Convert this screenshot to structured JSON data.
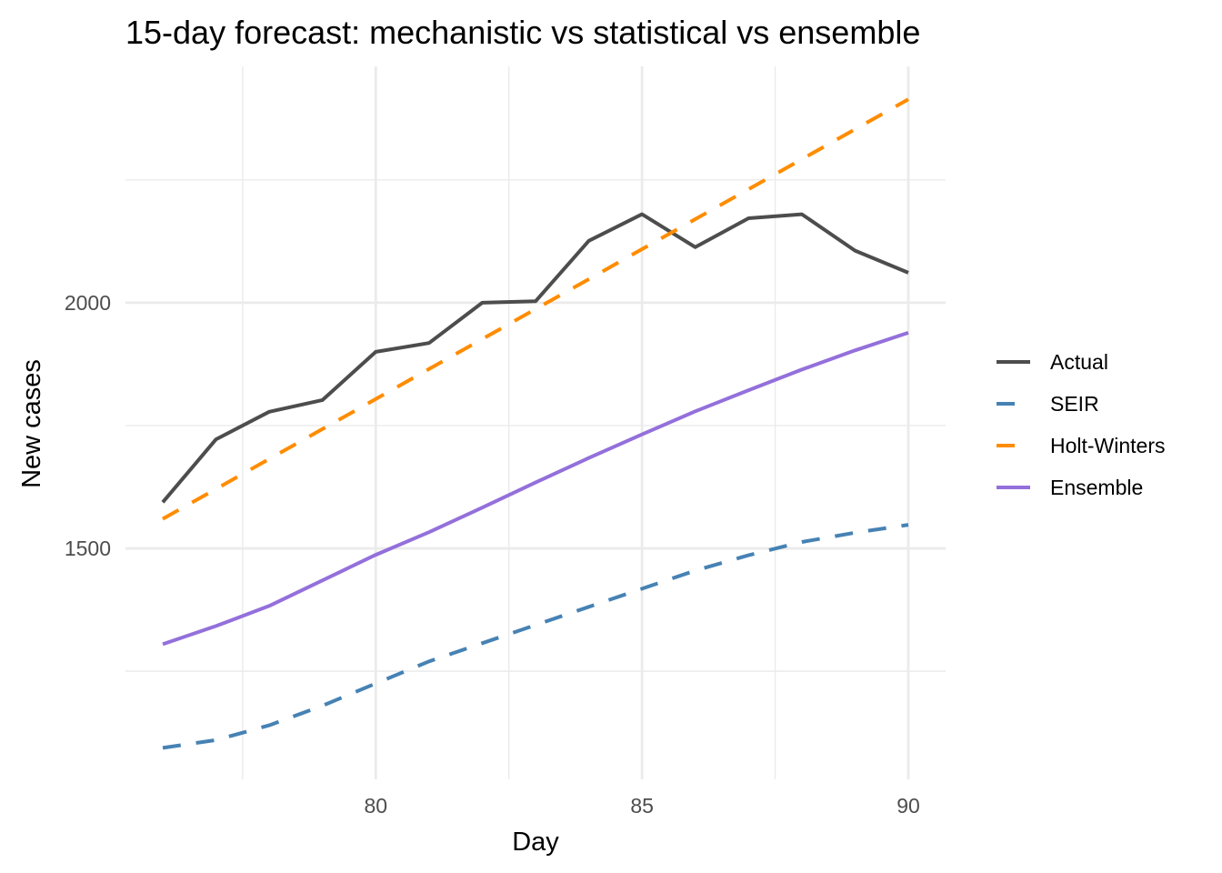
{
  "chart_data": {
    "type": "line",
    "title": "15-day forecast: mechanistic vs statistical vs ensemble",
    "xlabel": "Day",
    "ylabel": "New cases",
    "x": [
      76,
      77,
      78,
      79,
      80,
      81,
      82,
      83,
      84,
      85,
      86,
      87,
      88,
      89,
      90
    ],
    "xlim": [
      75.3,
      90.7
    ],
    "ylim": [
      1030,
      2481
    ],
    "x_ticks": [
      80,
      85,
      90
    ],
    "x_tick_labels": [
      "80",
      "85",
      "90"
    ],
    "x_minor_ticks": [
      77.5,
      82.5,
      87.5
    ],
    "y_ticks": [
      1500,
      2000
    ],
    "y_tick_labels": [
      "1500",
      "2000"
    ],
    "y_minor_ticks": [
      1250,
      1750,
      2250
    ],
    "grid": true,
    "legend_position": "right",
    "series": [
      {
        "name": "Actual",
        "color": "#4d4d4d",
        "dash": "solid",
        "values": [
          1594,
          1722,
          1778,
          1802,
          1900,
          1918,
          2000,
          2003,
          2126,
          2180,
          2113,
          2172,
          2180,
          2106,
          2061
        ]
      },
      {
        "name": "SEIR",
        "color": "#4682b4",
        "dash": "dashed",
        "values": [
          1094,
          1110,
          1140,
          1180,
          1225,
          1270,
          1307,
          1344,
          1381,
          1418,
          1455,
          1486,
          1513,
          1532,
          1548
        ]
      },
      {
        "name": "Holt-Winters",
        "color": "#ff8c00",
        "dash": "dashed",
        "values": [
          1560,
          1621,
          1682,
          1743,
          1804,
          1865,
          1926,
          1987,
          2048,
          2109,
          2170,
          2231,
          2292,
          2353,
          2414
        ]
      },
      {
        "name": "Ensemble",
        "color": "#9370db",
        "dash": "solid",
        "values": [
          1305,
          1342,
          1383,
          1435,
          1487,
          1533,
          1583,
          1634,
          1684,
          1732,
          1779,
          1822,
          1864,
          1903,
          1939
        ]
      }
    ]
  }
}
